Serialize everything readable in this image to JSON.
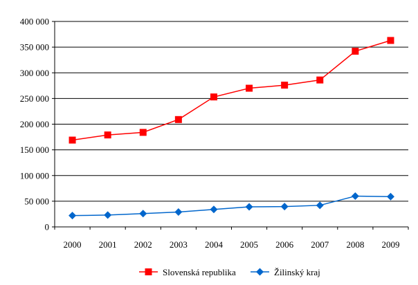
{
  "chart_data": {
    "type": "line",
    "categories": [
      "2000",
      "2001",
      "2002",
      "2003",
      "2004",
      "2005",
      "2006",
      "2007",
      "2008",
      "2009"
    ],
    "y_tick_labels": [
      "0",
      "50 000",
      "100 000",
      "150 000",
      "200 000",
      "250 000",
      "300 000",
      "350 000",
      "400 000"
    ],
    "y_ticks": [
      0,
      50000,
      100000,
      150000,
      200000,
      250000,
      300000,
      350000,
      400000
    ],
    "ylim": [
      0,
      400000
    ],
    "grid": true,
    "legend_position": "bottom",
    "series": [
      {
        "name": "Slovenská republika",
        "color": "#ff0000",
        "marker": "square",
        "values": [
          169000,
          179000,
          184000,
          209000,
          253000,
          270000,
          276000,
          286000,
          342000,
          363000
        ]
      },
      {
        "name": "Žilinský kraj",
        "color": "#0066cc",
        "marker": "diamond",
        "values": [
          22000,
          23000,
          26000,
          29000,
          34000,
          39000,
          39500,
          42000,
          60000,
          59000
        ]
      }
    ]
  }
}
